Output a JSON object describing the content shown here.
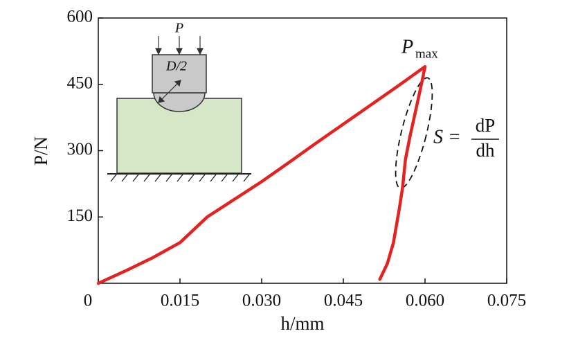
{
  "chart_data": {
    "type": "line",
    "x_label": "h/mm",
    "y_label": "P/N",
    "x": [
      0,
      0.005,
      0.01,
      0.015,
      0.02,
      0.025,
      0.03,
      0.035,
      0.04,
      0.045,
      0.05,
      0.055,
      0.06,
      0.0595,
      0.0588,
      0.058,
      0.0572,
      0.0564,
      0.0559,
      0.0553,
      0.0542,
      0.0531,
      0.0517
    ],
    "series": [
      {
        "color": "#e32322",
        "values": [
          0,
          28,
          58,
          92,
          150,
          190,
          230,
          273,
          317,
          360,
          403,
          446,
          490,
          460,
          420,
          375,
          330,
          280,
          218,
          170,
          92,
          45,
          9
        ]
      }
    ],
    "xlim": [
      0,
      0.075
    ],
    "ylim": [
      0,
      600
    ],
    "xticks": [
      0,
      0.015,
      {
        "value": 0.03,
        "label": "0.030"
      },
      0.045,
      {
        "value": 0.06,
        "label": "0.060"
      },
      0.075
    ],
    "yticks": [
      150,
      300,
      450,
      600
    ],
    "grid": false,
    "annotations": {
      "pmax": {
        "main": "P",
        "sub": "max"
      },
      "stiffness": {
        "lhs": "S =",
        "num": "dP",
        "den": "dh"
      },
      "inset": {
        "load": "P",
        "radius": "D/2"
      }
    }
  }
}
